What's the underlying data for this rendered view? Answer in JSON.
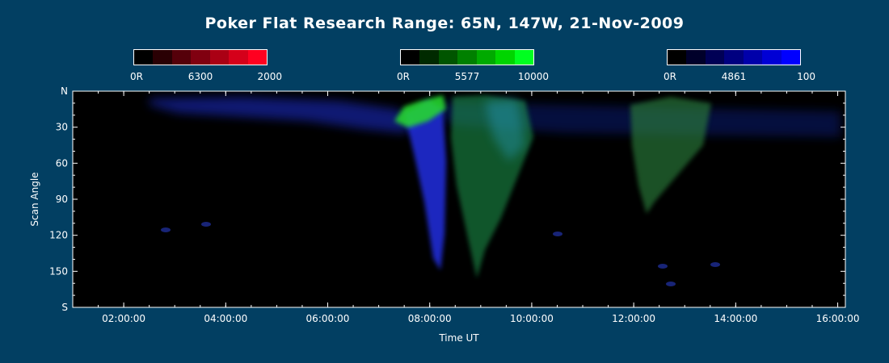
{
  "title": "Poker Flat Research Range: 65N, 147W, 21-Nov-2009",
  "colorbars": [
    {
      "name": "red",
      "min_label": "0R",
      "wavelength": "6300",
      "max_label": "2000",
      "colors": [
        "#000000",
        "#2a0004",
        "#55000a",
        "#800010",
        "#aa0014",
        "#d5001a",
        "#ff0020"
      ]
    },
    {
      "name": "green",
      "min_label": "0R",
      "wavelength": "5577",
      "max_label": "10000",
      "colors": [
        "#000000",
        "#002a00",
        "#005500",
        "#008000",
        "#00aa00",
        "#00d500",
        "#00ff20"
      ]
    },
    {
      "name": "blue",
      "min_label": "0R",
      "wavelength": "4861",
      "max_label": "100",
      "colors": [
        "#000000",
        "#00002a",
        "#000055",
        "#000080",
        "#0000aa",
        "#0000d5",
        "#0000ff"
      ]
    }
  ],
  "chart_data": {
    "type": "heatmap",
    "xlabel": "Time UT",
    "ylabel": "Scan Angle",
    "x_ticks": [
      "02:00:00",
      "04:00:00",
      "06:00:00",
      "08:00:00",
      "10:00:00",
      "12:00:00",
      "14:00:00",
      "16:00:00"
    ],
    "y_ticks": [
      "N",
      "30",
      "60",
      "90",
      "120",
      "150",
      "S"
    ],
    "x_range_hours": [
      1.0,
      16.15
    ],
    "y_range": [
      0,
      180
    ],
    "grid": false,
    "emission_features": [
      {
        "channel": "blue",
        "description_hours": [
          2.5,
          8.0
        ],
        "scan_angle": [
          0,
          35
        ]
      },
      {
        "channel": "blue",
        "description_hours": [
          7.8,
          8.3
        ],
        "scan_angle": [
          0,
          155
        ]
      },
      {
        "channel": "green",
        "description_hours": [
          7.5,
          8.3
        ],
        "scan_angle": [
          5,
          35
        ]
      },
      {
        "channel": "green",
        "description_hours": [
          8.7,
          10.2
        ],
        "scan_angle": [
          0,
          160
        ]
      },
      {
        "channel": "green",
        "description_hours": [
          12.2,
          14.0
        ],
        "scan_angle": [
          5,
          100
        ]
      }
    ]
  }
}
